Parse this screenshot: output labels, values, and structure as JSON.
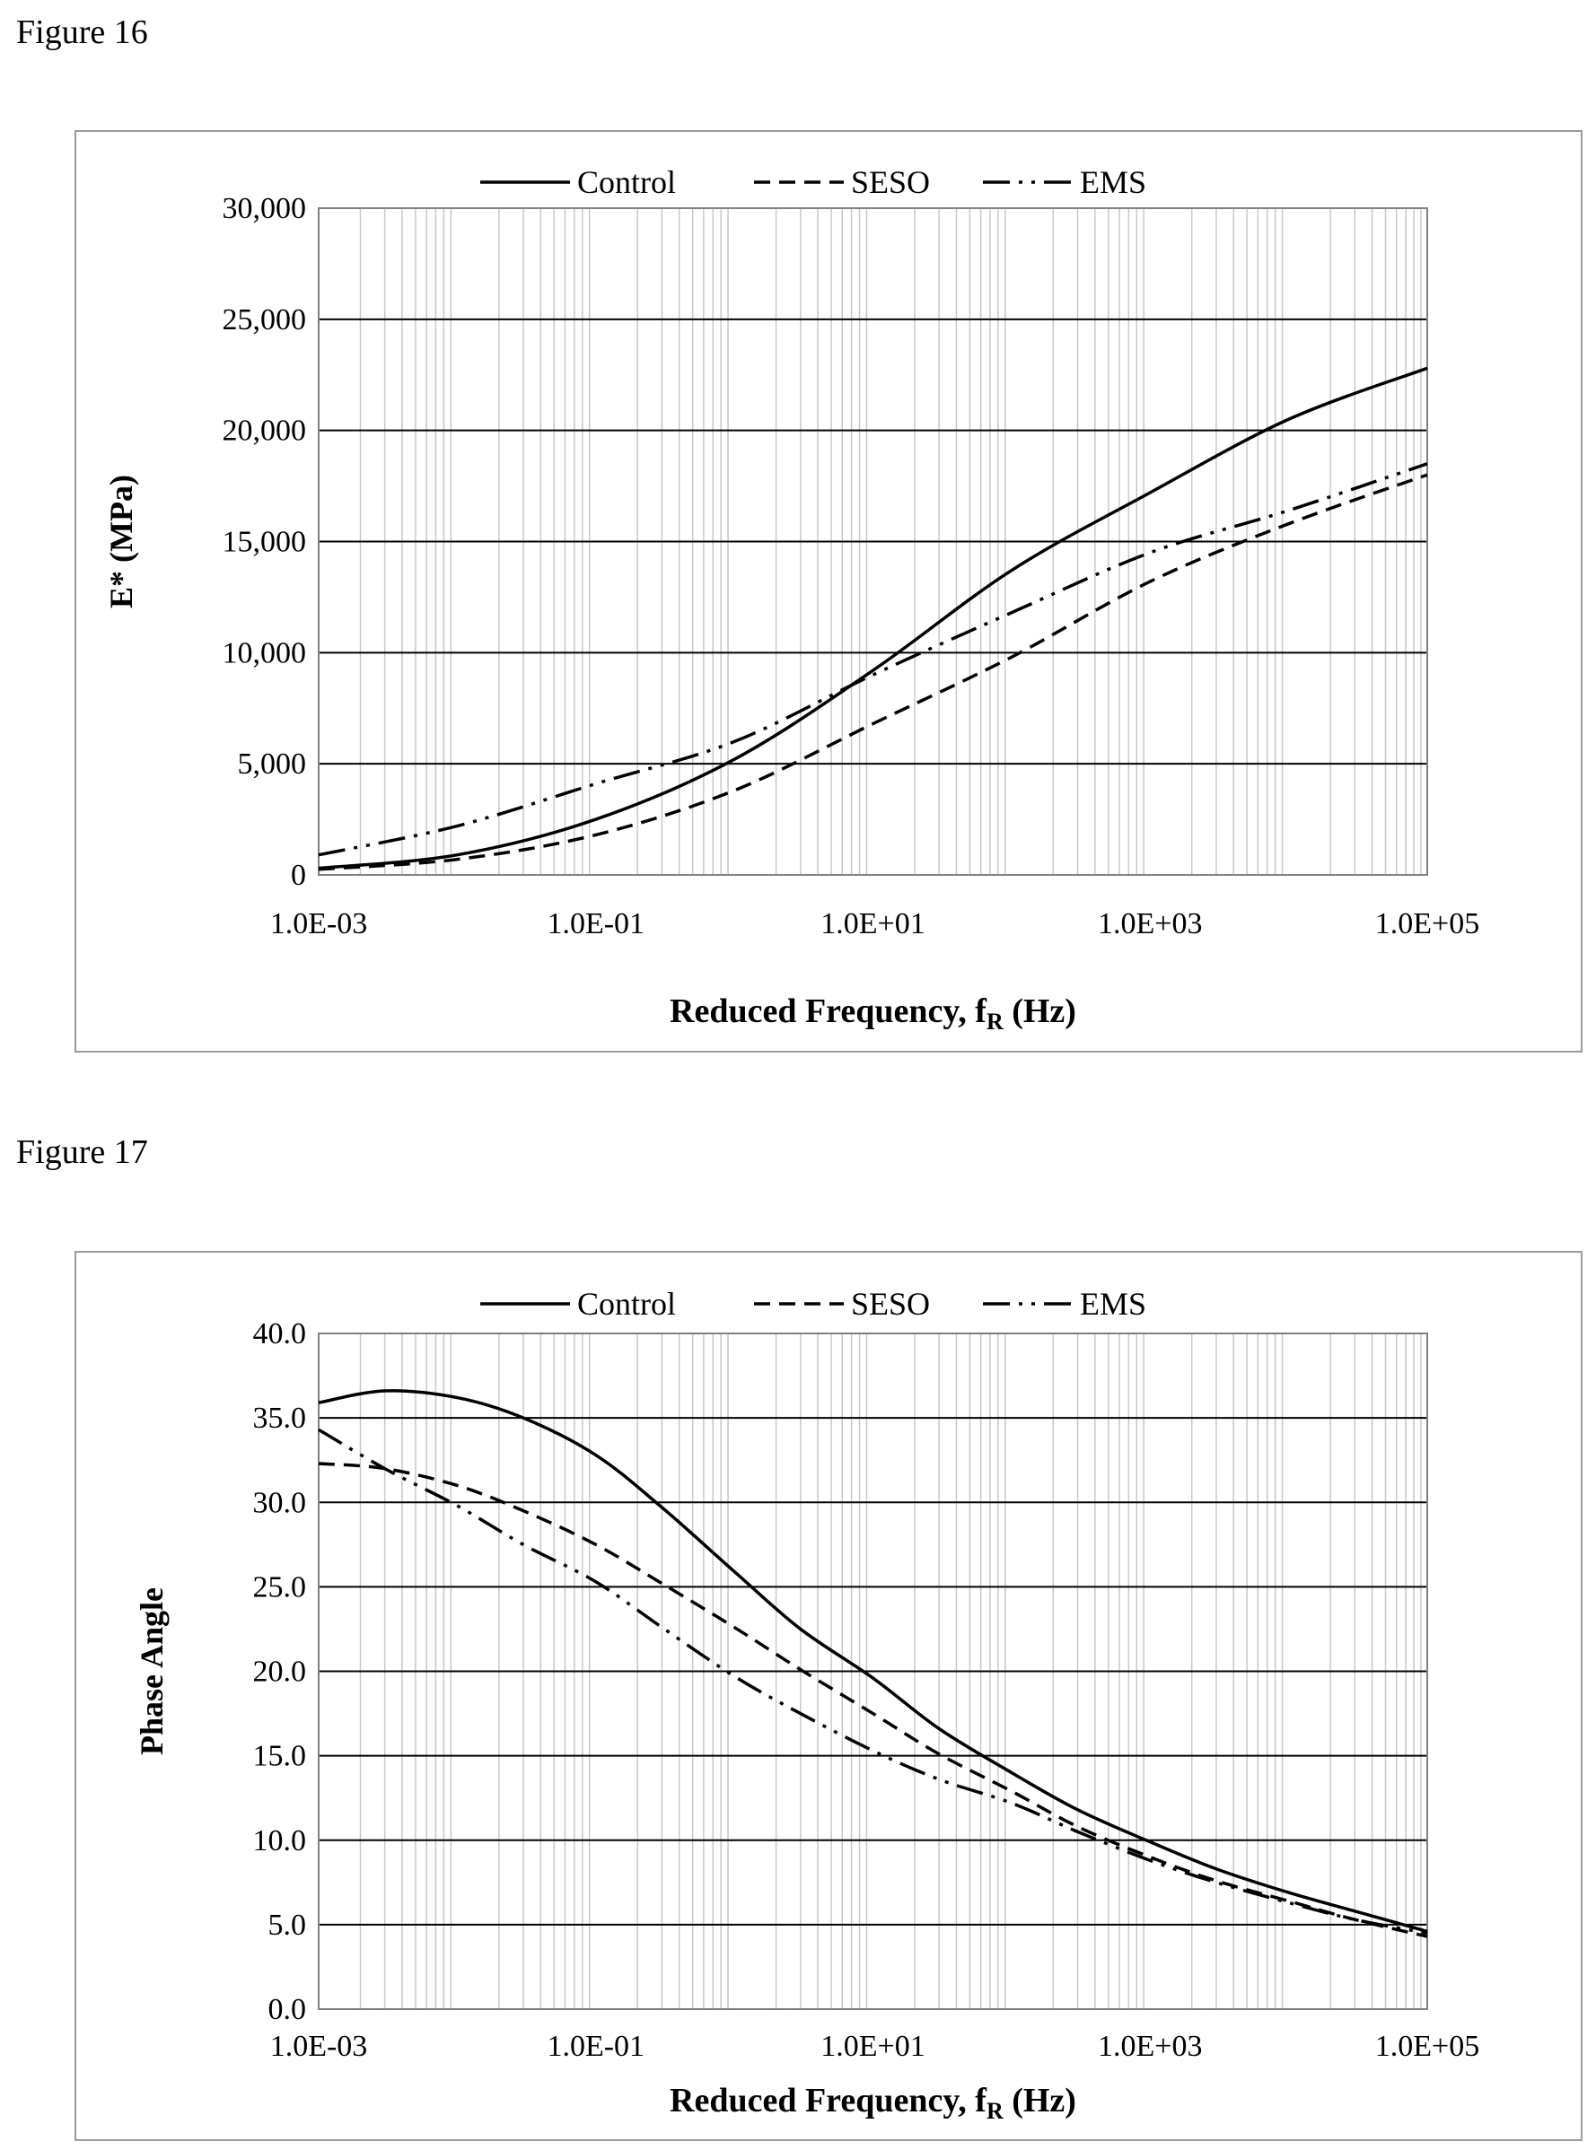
{
  "figures": [
    {
      "label": "Figure 16"
    },
    {
      "label": "Figure 17"
    }
  ],
  "chart_data": [
    {
      "type": "line",
      "x_scale": "log",
      "xlim": [
        0.001,
        100000
      ],
      "ylim": [
        0,
        30000
      ],
      "x_ticks": [
        "1.0E-03",
        "1.0E-01",
        "1.0E+01",
        "1.0E+03",
        "1.0E+05"
      ],
      "y_ticks": [
        "0",
        "5,000",
        "10,000",
        "15,000",
        "20,000",
        "25,000",
        "30,000"
      ],
      "xlabel": "Reduced Frequency, f",
      "xlabel_sub": "R",
      "xlabel_tail": " (Hz)",
      "ylabel": "E* (MPa)",
      "grid": true,
      "legend_position": "top",
      "series": [
        {
          "name": "Control",
          "style": "solid",
          "x": [
            0.001,
            0.01,
            0.1,
            1,
            10,
            100,
            1000,
            10000,
            100000
          ],
          "y": [
            300,
            900,
            2500,
            5200,
            9200,
            13700,
            17200,
            20500,
            22800
          ]
        },
        {
          "name": "SESO",
          "style": "dashed",
          "x": [
            0.001,
            0.01,
            0.1,
            1,
            10,
            100,
            1000,
            10000,
            100000
          ],
          "y": [
            250,
            700,
            1800,
            3800,
            6800,
            9800,
            13200,
            15800,
            18000
          ]
        },
        {
          "name": "EMS",
          "style": "dash-dot-dot",
          "x": [
            0.001,
            0.01,
            0.1,
            1,
            10,
            100,
            1000,
            10000,
            100000
          ],
          "y": [
            900,
            2200,
            4100,
            6000,
            9000,
            11800,
            14500,
            16400,
            18500
          ]
        }
      ]
    },
    {
      "type": "line",
      "x_scale": "log",
      "xlim": [
        0.001,
        100000
      ],
      "ylim": [
        0,
        40
      ],
      "x_ticks": [
        "1.0E-03",
        "1.0E-01",
        "1.0E+01",
        "1.0E+03",
        "1.0E+05"
      ],
      "y_ticks": [
        "0.0",
        "5.0",
        "10.0",
        "15.0",
        "20.0",
        "25.0",
        "30.0",
        "35.0",
        "40.0"
      ],
      "xlabel": "Reduced Frequency, f",
      "xlabel_sub": "R",
      "xlabel_tail": " (Hz)",
      "ylabel": "Phase Angle",
      "grid": true,
      "legend_position": "top",
      "series": [
        {
          "name": "Control",
          "style": "solid",
          "x": [
            0.001,
            0.003,
            0.01,
            0.03,
            0.1,
            0.3,
            1,
            3,
            10,
            30,
            100,
            300,
            1000,
            3000,
            10000,
            30000,
            100000
          ],
          "y": [
            35.9,
            36.6,
            36.2,
            35.0,
            32.8,
            29.7,
            25.9,
            22.5,
            19.6,
            16.6,
            14.0,
            11.8,
            9.9,
            8.3,
            6.9,
            5.8,
            4.6
          ]
        },
        {
          "name": "SESO",
          "style": "dashed",
          "x": [
            0.001,
            0.003,
            0.01,
            0.03,
            0.1,
            0.3,
            1,
            3,
            10,
            30,
            100,
            300,
            1000,
            3000,
            10000,
            30000,
            100000
          ],
          "y": [
            32.3,
            32.0,
            31.0,
            29.5,
            27.5,
            25.2,
            22.6,
            20.1,
            17.5,
            15.1,
            12.9,
            10.8,
            9.0,
            7.6,
            6.4,
            5.3,
            4.3
          ]
        },
        {
          "name": "EMS",
          "style": "dash-dot-dot",
          "x": [
            0.001,
            0.003,
            0.01,
            0.03,
            0.1,
            0.3,
            1,
            3,
            10,
            30,
            100,
            300,
            1000,
            3000,
            10000,
            30000,
            100000
          ],
          "y": [
            34.3,
            32.0,
            29.8,
            27.5,
            25.3,
            22.6,
            19.7,
            17.5,
            15.3,
            13.6,
            12.2,
            10.5,
            8.8,
            7.5,
            6.3,
            5.3,
            4.5
          ]
        }
      ]
    }
  ]
}
